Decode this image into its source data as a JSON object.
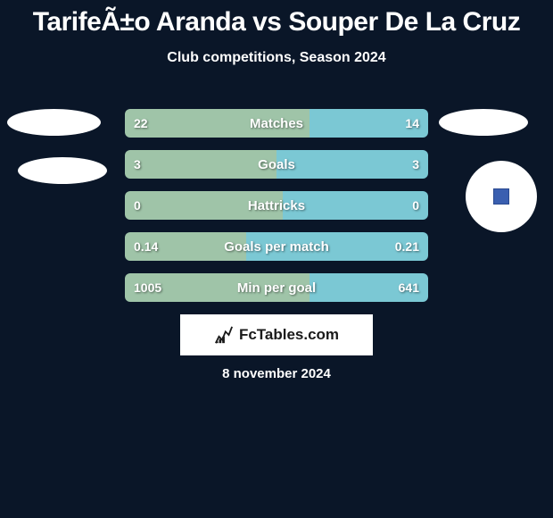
{
  "title": "TarifeÃ±o Aranda vs Souper De La Cruz",
  "subtitle": "Club competitions, Season 2024",
  "date": "8 november 2024",
  "logo_text": "FcTables.com",
  "colors": {
    "background": "#0a1628",
    "left_bar": "#9fc4a8",
    "right_bar": "#7bc8d4",
    "text": "#ffffff"
  },
  "bars": [
    {
      "label": "Matches",
      "left_val": "22",
      "right_val": "14",
      "left_pct": 61,
      "right_pct": 39
    },
    {
      "label": "Goals",
      "left_val": "3",
      "right_val": "3",
      "left_pct": 50,
      "right_pct": 50
    },
    {
      "label": "Hattricks",
      "left_val": "0",
      "right_val": "0",
      "left_pct": 52,
      "right_pct": 48
    },
    {
      "label": "Goals per match",
      "left_val": "0.14",
      "right_val": "0.21",
      "left_pct": 40,
      "right_pct": 60
    },
    {
      "label": "Min per goal",
      "left_val": "1005",
      "right_val": "641",
      "left_pct": 61,
      "right_pct": 39
    }
  ]
}
